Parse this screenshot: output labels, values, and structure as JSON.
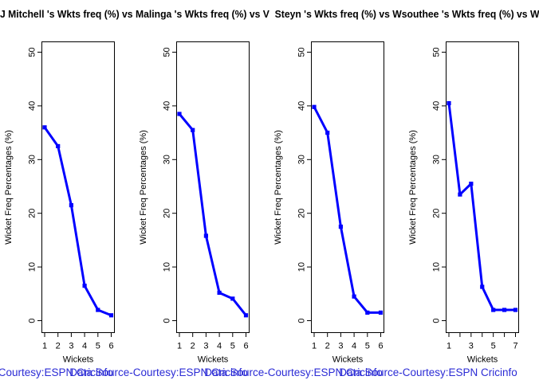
{
  "title": "J Mitchell 's Wkts freq (%) vs Malinga 's Wkts freq (%) vs V  Steyn 's Wkts freq (%) vs Wsouthee 's Wkts freq (%) vs W",
  "caption": "Data Source-Courtesy:ESPN Cricinfo",
  "colors": {
    "line": "#0000FF",
    "caption": "#2B2BD5",
    "axis": "#000000",
    "background": "#FFFFFF"
  },
  "chart_data": [
    {
      "type": "line",
      "name": "Mitchell",
      "x": [
        1,
        2,
        3,
        4,
        5,
        6
      ],
      "values": [
        36,
        32.5,
        21.5,
        6.5,
        2,
        1
      ],
      "xtick_labels": [
        "1",
        "2",
        "3",
        "4",
        "5",
        "6"
      ],
      "xlabel": "Wickets",
      "ylabel": "Wicket Freq Percentages (%)",
      "ylim": [
        0,
        50
      ],
      "yticks": [
        0,
        10,
        20,
        30,
        40,
        50
      ],
      "grid": false,
      "legend": false
    },
    {
      "type": "line",
      "name": "Malinga",
      "x": [
        1,
        2,
        3,
        4,
        5,
        6
      ],
      "values": [
        38.5,
        35.5,
        15.8,
        5.2,
        4.1,
        1
      ],
      "xtick_labels": [
        "1",
        "2",
        "3",
        "4",
        "5",
        "6"
      ],
      "xlabel": "Wickets",
      "ylabel": "Wicket Freq Percentages (%)",
      "ylim": [
        0,
        50
      ],
      "yticks": [
        0,
        10,
        20,
        30,
        40,
        50
      ],
      "grid": false,
      "legend": false
    },
    {
      "type": "line",
      "name": "Steyn",
      "x": [
        1,
        2,
        3,
        4,
        5,
        6
      ],
      "values": [
        39.8,
        35,
        17.5,
        4.5,
        1.5,
        1.5
      ],
      "xtick_labels": [
        "1",
        "2",
        "3",
        "4",
        "5",
        "6"
      ],
      "xlabel": "Wickets",
      "ylabel": "Wicket Freq Percentages (%)",
      "ylim": [
        0,
        50
      ],
      "yticks": [
        0,
        10,
        20,
        30,
        40,
        50
      ],
      "grid": false,
      "legend": false
    },
    {
      "type": "line",
      "name": "Southee",
      "x": [
        1,
        2,
        3,
        4,
        5,
        6,
        7
      ],
      "values": [
        40.5,
        23.5,
        25.5,
        6.3,
        2,
        2,
        2
      ],
      "xtick_labels": [
        "1",
        "",
        "3",
        "",
        "5",
        "",
        "7"
      ],
      "xlabel": "Wickets",
      "ylabel": "Wicket Freq Percentages (%)",
      "ylim": [
        0,
        50
      ],
      "yticks": [
        0,
        10,
        20,
        30,
        40,
        50
      ],
      "grid": false,
      "legend": false
    }
  ]
}
